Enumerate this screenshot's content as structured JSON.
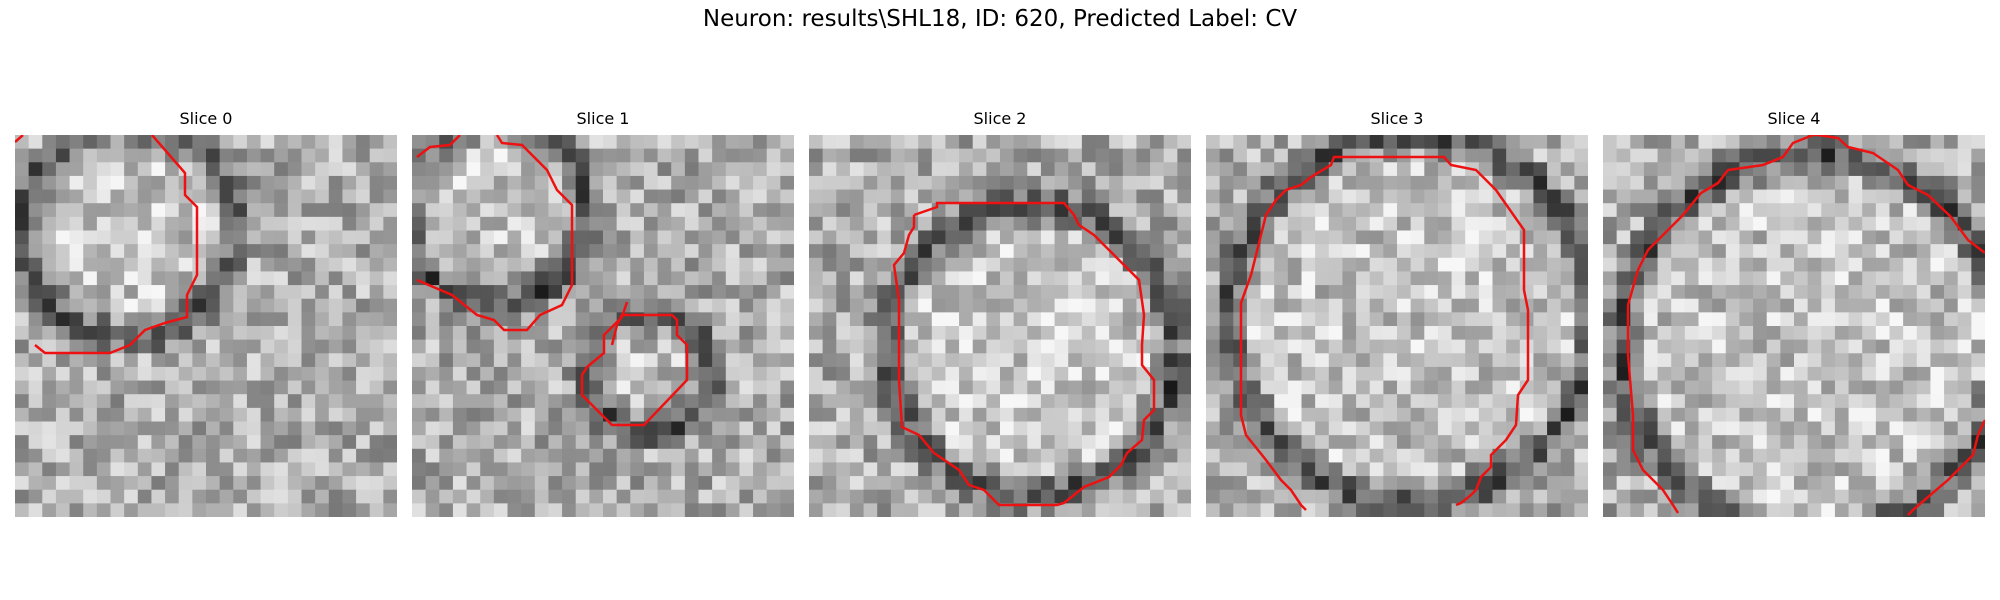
{
  "figure": {
    "title": "Neuron: results\\SHL18, ID: 620, Predicted Label: CV"
  },
  "contour_color": "#ee1111",
  "panels": [
    {
      "title": "Slice 0"
    },
    {
      "title": "Slice 1"
    },
    {
      "title": "Slice 2"
    },
    {
      "title": "Slice 3"
    },
    {
      "title": "Slice 4"
    }
  ]
}
